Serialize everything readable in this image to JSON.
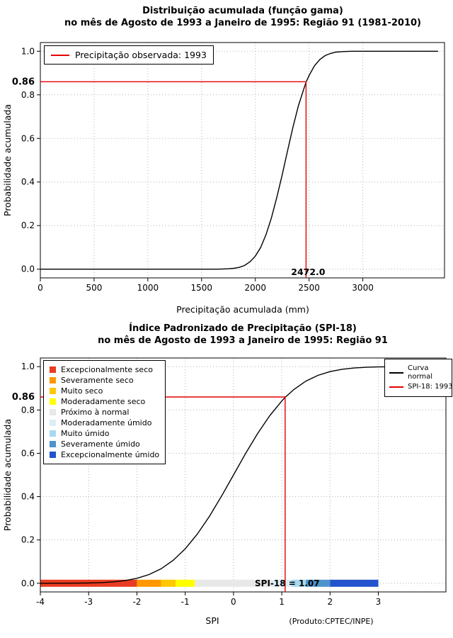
{
  "page": {
    "background": "#ffffff"
  },
  "chart_data": [
    {
      "type": "line",
      "title": "Distribuição acumulada (função gama)",
      "subtitle": "no mês de Agosto de 1993 a Janeiro de 1995: Região 91 (1981-2010)",
      "xlabel": "Precipitação acumulada (mm)",
      "ylabel": "Probabilidade acumulada",
      "xlim": [
        0,
        3760
      ],
      "ylim": [
        -0.04,
        1.04
      ],
      "xticks": [
        0,
        500,
        1000,
        1500,
        2000,
        2500,
        3000
      ],
      "xtick_labels": [
        "0",
        "500",
        "1000",
        "1500",
        "2000",
        "2500",
        "3000"
      ],
      "yticks": [
        0,
        0.2,
        0.4,
        0.6,
        0.8,
        1
      ],
      "ytick_labels": [
        "0.0",
        "0.2",
        "0.4",
        "0.6",
        "0.8",
        "1.0"
      ],
      "grid": true,
      "legend": {
        "position": "top-left",
        "entries": [
          {
            "label": "Precipitação observada: 1993",
            "color": "#e60000",
            "type": "line"
          }
        ]
      },
      "series": [
        {
          "name": "Distribuição gama acumulada",
          "color": "#000000",
          "x": [
            0,
            250,
            500,
            750,
            1000,
            1250,
            1500,
            1600,
            1650,
            1700,
            1750,
            1800,
            1850,
            1900,
            1950,
            2000,
            2050,
            2100,
            2150,
            2200,
            2250,
            2300,
            2350,
            2400,
            2450,
            2472,
            2500,
            2550,
            2600,
            2650,
            2700,
            2750,
            2800,
            2850,
            2900,
            3000,
            3100,
            3300,
            3500,
            3700
          ],
          "y": [
            0,
            0,
            0,
            0,
            0,
            0,
            0,
            0,
            0,
            0.001,
            0.002,
            0.004,
            0.008,
            0.017,
            0.034,
            0.06,
            0.1,
            0.159,
            0.236,
            0.33,
            0.433,
            0.544,
            0.652,
            0.749,
            0.826,
            0.858,
            0.889,
            0.933,
            0.962,
            0.98,
            0.99,
            0.996,
            0.998,
            0.999,
            1,
            1,
            1,
            1,
            1,
            1
          ]
        }
      ],
      "reference": {
        "x": 2472.0,
        "y": 0.86,
        "x_label": "2472.0",
        "y_label": "0.86",
        "color": "#e60000",
        "drop_to": -0.04
      }
    },
    {
      "type": "line",
      "title": "Índice Padronizado de Precipitação (SPI-18)",
      "subtitle": "no mês de Agosto de 1993 a Janeiro de 1995: Região 91",
      "xlabel": "SPI",
      "ylabel": "Probabilidade acumulada",
      "credit": "(Produto:CPTEC/INPE)",
      "xlim": [
        -4,
        4.4
      ],
      "ylim": [
        -0.04,
        1.04
      ],
      "xticks": [
        -4,
        -3,
        -2,
        -1,
        0,
        1,
        2,
        3
      ],
      "xtick_labels": [
        "-4",
        "-3",
        "-2",
        "-1",
        "0",
        "1",
        "2",
        "3"
      ],
      "yticks": [
        0,
        0.2,
        0.4,
        0.6,
        0.8,
        1
      ],
      "ytick_labels": [
        "0.0",
        "0.2",
        "0.4",
        "0.6",
        "0.8",
        "1.0"
      ],
      "grid": true,
      "series": [
        {
          "name": "Curva normal",
          "color": "#000000",
          "x": [
            -4,
            -3.75,
            -3.5,
            -3.25,
            -3,
            -2.75,
            -2.5,
            -2.25,
            -2,
            -1.75,
            -1.5,
            -1.25,
            -1,
            -0.75,
            -0.5,
            -0.25,
            0,
            0.25,
            0.5,
            0.75,
            1,
            1.07,
            1.25,
            1.5,
            1.75,
            2,
            2.25,
            2.5,
            2.75,
            3,
            3.25,
            3.5,
            3.75,
            4,
            4.4
          ],
          "y": [
            0,
            0.0001,
            0.0002,
            0.0006,
            0.0013,
            0.003,
            0.0062,
            0.0122,
            0.0228,
            0.0401,
            0.0668,
            0.1056,
            0.1587,
            0.2266,
            0.3085,
            0.4013,
            0.5,
            0.5987,
            0.6915,
            0.7734,
            0.8413,
            0.858,
            0.8944,
            0.9332,
            0.9599,
            0.9772,
            0.9878,
            0.9938,
            0.997,
            0.9987,
            0.9994,
            0.9998,
            0.9999,
            1,
            1
          ]
        }
      ],
      "reference": {
        "x": 1.07,
        "y": 0.86,
        "y_label": "0.86",
        "color": "#e60000",
        "drop_to": -0.04
      },
      "annotation": {
        "text": "SPI-18 = 1.07",
        "x": 1.07,
        "y": 0
      },
      "colorbar": {
        "y": 0,
        "height": 10,
        "segments": [
          {
            "from": -4,
            "to": -2,
            "color": "#e93c20",
            "label": "Excepcionalmente seco"
          },
          {
            "from": -2,
            "to": -1.5,
            "color": "#ff9800",
            "label": "Severamente seco"
          },
          {
            "from": -1.5,
            "to": -1.2,
            "color": "#ffc800",
            "label": "Muito seco"
          },
          {
            "from": -1.2,
            "to": -0.8,
            "color": "#ffff00",
            "label": "Moderadamente seco"
          },
          {
            "from": -0.8,
            "to": 0.8,
            "color": "#e8e8e8",
            "label": "Próximo à normal"
          },
          {
            "from": 0.8,
            "to": 1.2,
            "color": "#dceef7",
            "label": "Moderadamente úmido"
          },
          {
            "from": 1.2,
            "to": 1.5,
            "color": "#a6d9f0",
            "label": "Muito úmido"
          },
          {
            "from": 1.5,
            "to": 2,
            "color": "#4d94cd",
            "label": "Severamente úmido"
          },
          {
            "from": 2,
            "to": 3,
            "color": "#2353cc",
            "label": "Excepcionalmente úmido"
          }
        ]
      },
      "legend_right": {
        "entries": [
          {
            "label": "Curva normal",
            "color": "#000000"
          },
          {
            "label": "SPI-18: 1993",
            "color": "#e60000"
          }
        ]
      }
    }
  ]
}
